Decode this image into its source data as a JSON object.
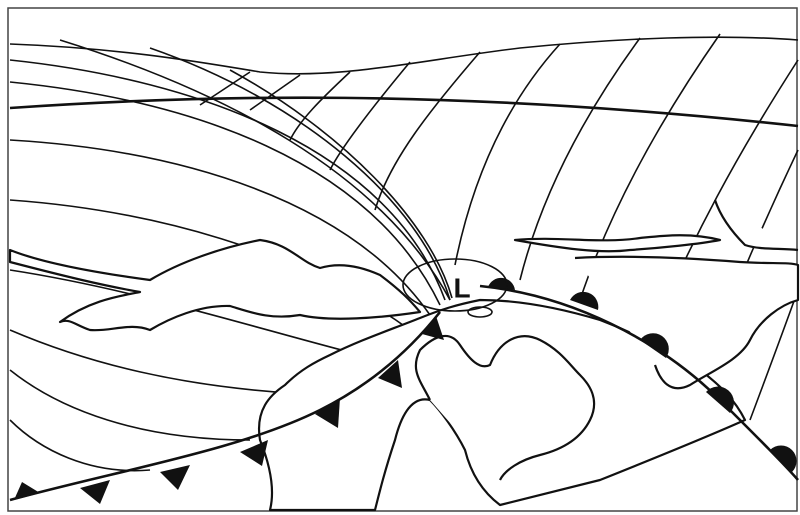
{
  "labels": {
    "low_pressure": "L"
  }
}
